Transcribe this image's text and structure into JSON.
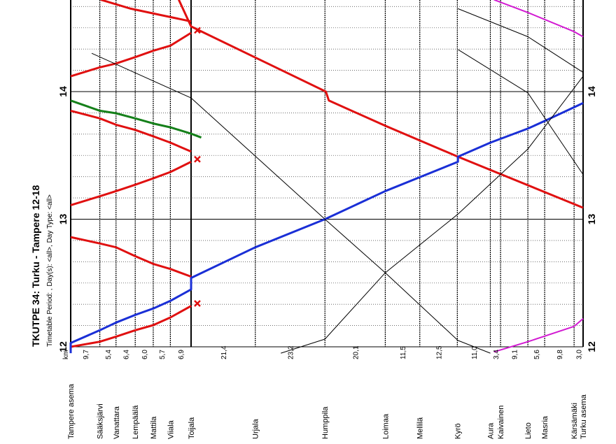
{
  "header": {
    "title": "TKUTPE   34: Turku - Tampere 12-18",
    "subtitle": "Timetable Period: , Day(s): <all>, Day Type: <all>"
  },
  "chart_data": {
    "type": "line",
    "km_label": "km",
    "time_axis": {
      "min_hour": 11.95,
      "max_hour": 14.72,
      "ticks": [
        "12",
        "13",
        "14"
      ]
    },
    "stations": [
      {
        "name": "Tampere asema",
        "pos": 0.0
      },
      {
        "name": "Sääksjärvi",
        "pos": 9.7
      },
      {
        "name": "Vanattara",
        "pos": 15.1
      },
      {
        "name": "Lempäälä",
        "pos": 21.5
      },
      {
        "name": "Mattila",
        "pos": 27.5
      },
      {
        "name": "Viiala",
        "pos": 33.2
      },
      {
        "name": "Toijala",
        "pos": 40.1
      },
      {
        "name": "Urjala",
        "pos": 61.5
      },
      {
        "name": "Humppila",
        "pos": 84.7
      },
      {
        "name": "Loimaa",
        "pos": 104.8
      },
      {
        "name": "Mellilä",
        "pos": 116.3
      },
      {
        "name": "Kyrö",
        "pos": 128.8
      },
      {
        "name": "Aura",
        "pos": 139.8
      },
      {
        "name": "Kaivainen",
        "pos": 143.2
      },
      {
        "name": "Lieto",
        "pos": 152.3
      },
      {
        "name": "Masria",
        "pos": 157.9
      },
      {
        "name": "Kärsämäki",
        "pos": 167.7
      },
      {
        "name": "Turku asema",
        "pos": 170.7
      }
    ],
    "distances": [
      {
        "label": "9,7",
        "at": 4.85
      },
      {
        "label": "5,4",
        "at": 12.4
      },
      {
        "label": "6,4",
        "at": 18.3
      },
      {
        "label": "6,0",
        "at": 24.5
      },
      {
        "label": "5,7",
        "at": 30.35
      },
      {
        "label": "6,9",
        "at": 36.65
      },
      {
        "label": "21,4",
        "at": 50.8
      },
      {
        "label": "23,2",
        "at": 73.1
      },
      {
        "label": "20,1",
        "at": 94.75
      },
      {
        "label": "11,5",
        "at": 110.55
      },
      {
        "label": "12,5",
        "at": 122.55
      },
      {
        "label": "11,0",
        "at": 134.3
      },
      {
        "label": "3,4",
        "at": 141.5
      },
      {
        "label": "9,1",
        "at": 147.75
      },
      {
        "label": "5,6",
        "at": 155.1
      },
      {
        "label": "9,8",
        "at": 162.8
      },
      {
        "label": "3,0",
        "at": 169.2
      }
    ],
    "series": [
      {
        "color": "#e01010",
        "width": 3,
        "points": [
          [
            36.0,
            14.72
          ],
          [
            40.1,
            14.51
          ],
          [
            85.0,
            14.0
          ],
          [
            86.0,
            13.93
          ],
          [
            105.0,
            13.73
          ],
          [
            129.0,
            13.49
          ],
          [
            170.7,
            13.09
          ]
        ]
      },
      {
        "color": "#e01010",
        "width": 3,
        "points": [
          [
            10.0,
            14.72
          ],
          [
            20.0,
            14.65
          ],
          [
            30.0,
            14.6
          ],
          [
            40.1,
            14.55
          ]
        ]
      },
      {
        "color": "#e01010",
        "width": 3,
        "points": [
          [
            0.0,
            14.12
          ],
          [
            9.7,
            14.19
          ],
          [
            15.1,
            14.22
          ],
          [
            21.5,
            14.27
          ],
          [
            27.5,
            14.32
          ],
          [
            33.2,
            14.36
          ],
          [
            40.1,
            14.46
          ]
        ]
      },
      {
        "color": "#e01010",
        "width": 3,
        "points": [
          [
            0.0,
            13.85
          ],
          [
            9.7,
            13.79
          ],
          [
            15.1,
            13.74
          ],
          [
            21.5,
            13.7
          ],
          [
            27.5,
            13.65
          ],
          [
            33.2,
            13.6
          ],
          [
            40.1,
            13.53
          ]
        ]
      },
      {
        "color": "#e01010",
        "width": 3,
        "points": [
          [
            0.0,
            13.11
          ],
          [
            9.7,
            13.18
          ],
          [
            15.1,
            13.22
          ],
          [
            21.5,
            13.27
          ],
          [
            27.5,
            13.32
          ],
          [
            33.2,
            13.37
          ],
          [
            40.1,
            13.45
          ]
        ]
      },
      {
        "color": "#e01010",
        "width": 3,
        "points": [
          [
            0.0,
            12.86
          ],
          [
            9.7,
            12.81
          ],
          [
            15.1,
            12.78
          ],
          [
            21.5,
            12.71
          ],
          [
            27.5,
            12.65
          ],
          [
            33.2,
            12.61
          ],
          [
            40.1,
            12.55
          ]
        ]
      },
      {
        "color": "#e01010",
        "width": 3,
        "points": [
          [
            0.0,
            12.0
          ],
          [
            9.7,
            12.04
          ],
          [
            15.1,
            12.08
          ],
          [
            21.5,
            12.13
          ],
          [
            27.5,
            12.17
          ],
          [
            33.2,
            12.23
          ],
          [
            40.1,
            12.32
          ]
        ]
      },
      {
        "color": "#1a2fd6",
        "width": 3,
        "points": [
          [
            0.0,
            11.95
          ],
          [
            0.0,
            12.03
          ],
          [
            9.7,
            12.13
          ],
          [
            15.1,
            12.19
          ],
          [
            21.5,
            12.25
          ],
          [
            27.5,
            12.3
          ],
          [
            33.2,
            12.36
          ],
          [
            40.1,
            12.45
          ],
          [
            40.1,
            12.54
          ],
          [
            61.5,
            12.78
          ],
          [
            84.7,
            13.0
          ],
          [
            104.8,
            13.22
          ],
          [
            129.0,
            13.45
          ],
          [
            129.0,
            13.49
          ],
          [
            139.8,
            13.6
          ],
          [
            152.3,
            13.71
          ],
          [
            157.9,
            13.77
          ],
          [
            170.7,
            13.91
          ]
        ]
      },
      {
        "color": "#15801a",
        "width": 3,
        "points": [
          [
            0.0,
            13.93
          ],
          [
            9.7,
            13.85
          ],
          [
            15.1,
            13.83
          ],
          [
            21.5,
            13.79
          ],
          [
            27.5,
            13.75
          ],
          [
            33.2,
            13.72
          ],
          [
            40.1,
            13.67
          ],
          [
            43.5,
            13.64
          ]
        ]
      },
      {
        "color": "#d21ad2",
        "width": 2,
        "points": [
          [
            141.0,
            11.96
          ],
          [
            152.3,
            12.04
          ],
          [
            167.7,
            12.16
          ],
          [
            170.7,
            12.22
          ]
        ]
      },
      {
        "color": "#d21ad2",
        "width": 2,
        "points": [
          [
            141.0,
            14.72
          ],
          [
            152.3,
            14.62
          ],
          [
            167.7,
            14.47
          ],
          [
            170.7,
            14.43
          ]
        ]
      },
      {
        "color": "#000000",
        "width": 1,
        "points": [
          [
            7.0,
            14.3
          ],
          [
            40.1,
            13.95
          ],
          [
            84.7,
            13.0
          ],
          [
            104.8,
            12.58
          ],
          [
            129.0,
            12.05
          ],
          [
            139.8,
            11.95
          ]
        ]
      },
      {
        "color": "#000000",
        "width": 1,
        "points": [
          [
            70.0,
            11.95
          ],
          [
            84.7,
            12.06
          ],
          [
            104.8,
            12.58
          ],
          [
            129.0,
            13.04
          ],
          [
            152.3,
            13.55
          ],
          [
            170.7,
            14.12
          ]
        ]
      },
      {
        "color": "#000000",
        "width": 1,
        "points": [
          [
            129.0,
            14.65
          ],
          [
            152.3,
            14.43
          ],
          [
            170.7,
            14.15
          ]
        ]
      },
      {
        "color": "#000000",
        "width": 1,
        "points": [
          [
            129.0,
            14.33
          ],
          [
            152.3,
            13.99
          ],
          [
            170.7,
            13.35
          ]
        ]
      }
    ],
    "markers": [
      {
        "pos": 40.1,
        "hour": 14.48
      },
      {
        "pos": 40.1,
        "hour": 13.47
      },
      {
        "pos": 40.1,
        "hour": 12.34
      }
    ]
  }
}
